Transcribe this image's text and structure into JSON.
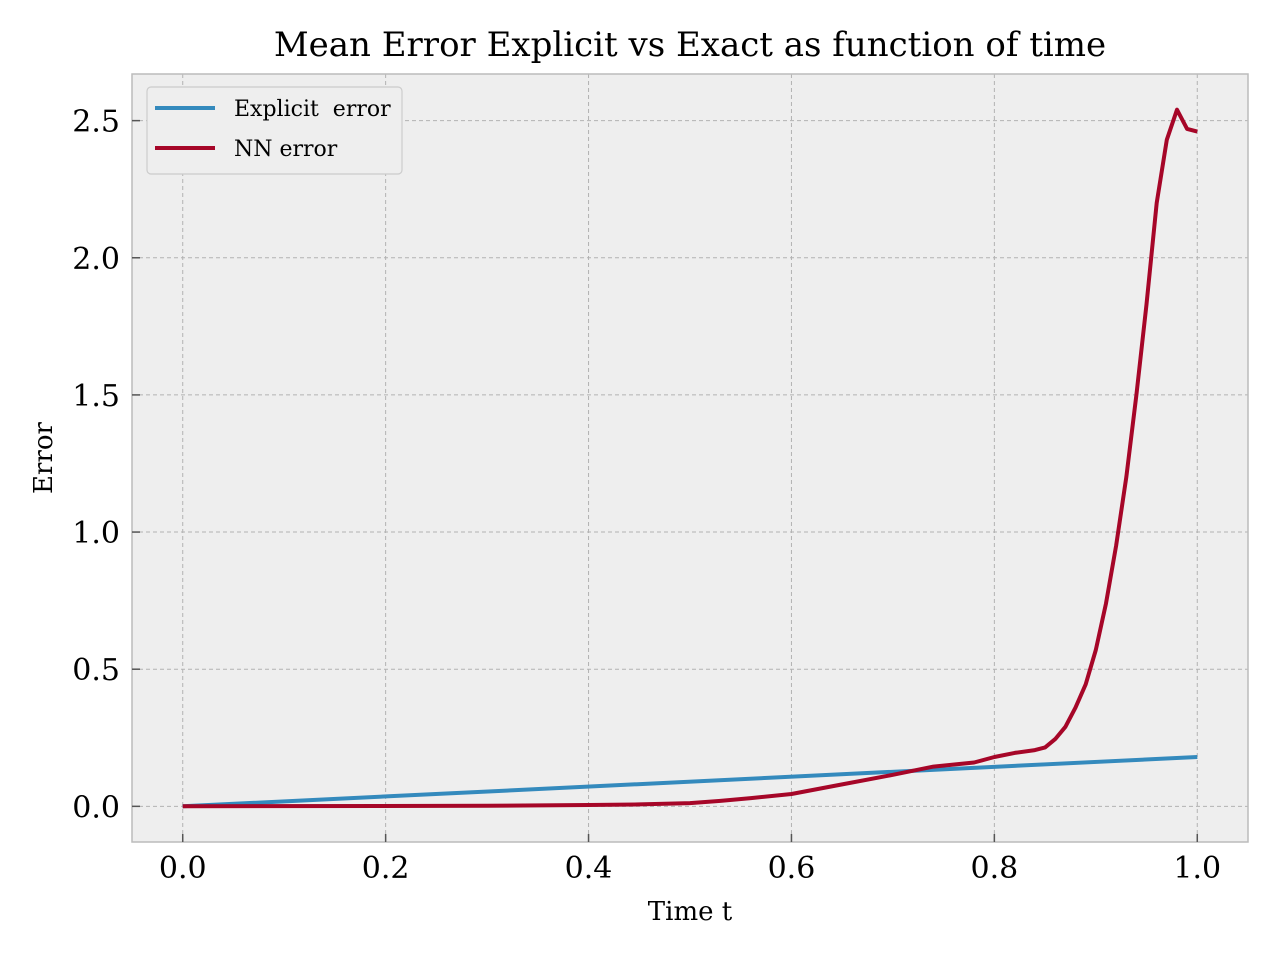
{
  "chart_data": {
    "type": "line",
    "title": "Mean Error Explicit  vs Exact as function of time",
    "xlabel": "Time t",
    "ylabel": "Error",
    "xlim": [
      -0.05,
      1.05
    ],
    "ylim": [
      -0.13,
      2.67
    ],
    "xticks": [
      0.0,
      0.2,
      0.4,
      0.6,
      0.8,
      1.0
    ],
    "xtick_labels": [
      "0.0",
      "0.2",
      "0.4",
      "0.6",
      "0.8",
      "1.0"
    ],
    "yticks": [
      0.0,
      0.5,
      1.0,
      1.5,
      2.0,
      2.5
    ],
    "ytick_labels": [
      "0.0",
      "0.5",
      "1.0",
      "1.5",
      "2.0",
      "2.5"
    ],
    "grid": true,
    "legend_position": "top-left",
    "background": "#eeeeee",
    "series": [
      {
        "name": "Explicit  error",
        "color": "#348abd",
        "x": [
          0.0,
          1.0
        ],
        "y": [
          0.0,
          0.18
        ]
      },
      {
        "name": "NN error",
        "color": "#a60628",
        "x": [
          0.0,
          0.3,
          0.4,
          0.45,
          0.5,
          0.53,
          0.56,
          0.6,
          0.65,
          0.7,
          0.74,
          0.78,
          0.8,
          0.82,
          0.84,
          0.85,
          0.86,
          0.87,
          0.88,
          0.89,
          0.9,
          0.91,
          0.92,
          0.93,
          0.94,
          0.95,
          0.96,
          0.97,
          0.98,
          0.99,
          1.0
        ],
        "y": [
          0.0,
          0.002,
          0.005,
          0.007,
          0.012,
          0.02,
          0.03,
          0.045,
          0.08,
          0.115,
          0.145,
          0.16,
          0.18,
          0.195,
          0.205,
          0.215,
          0.245,
          0.29,
          0.36,
          0.445,
          0.57,
          0.74,
          0.95,
          1.2,
          1.5,
          1.83,
          2.2,
          2.43,
          2.54,
          2.47,
          2.46
        ]
      }
    ]
  }
}
